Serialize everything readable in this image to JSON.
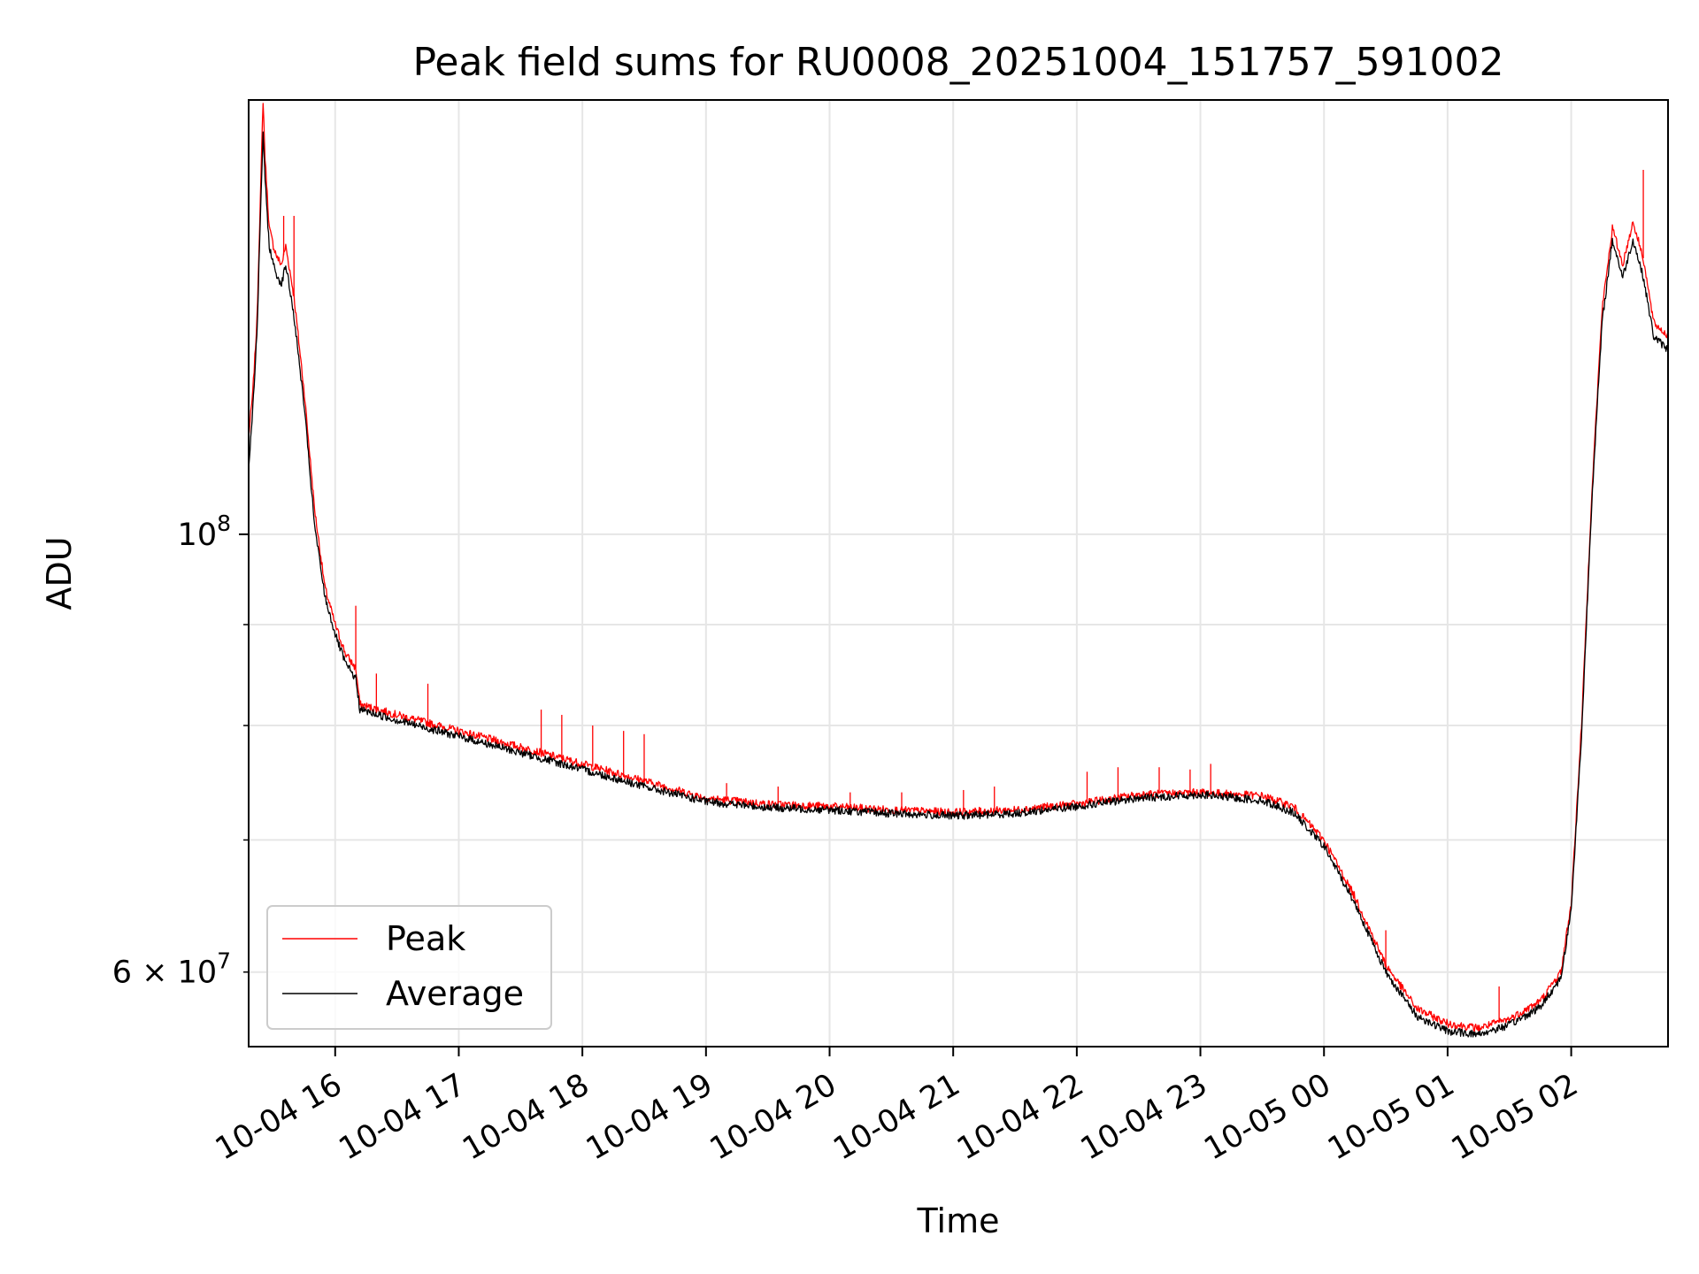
{
  "chart_data": {
    "type": "line",
    "title": "Peak field sums for RU0008_20251004_151757_591002",
    "xlabel": "Time",
    "ylabel": "ADU",
    "y_scale": "log",
    "ylim": [
      55000000,
      166000000
    ],
    "xlim": [
      "2025-10-04 15:18",
      "2025-10-05 02:47"
    ],
    "grid": true,
    "legend_position": "lower-left",
    "x_ticks": [
      {
        "value": "2025-10-04 16:00",
        "label": "10-04 16"
      },
      {
        "value": "2025-10-04 17:00",
        "label": "10-04 17"
      },
      {
        "value": "2025-10-04 18:00",
        "label": "10-04 18"
      },
      {
        "value": "2025-10-04 19:00",
        "label": "10-04 19"
      },
      {
        "value": "2025-10-04 20:00",
        "label": "10-04 20"
      },
      {
        "value": "2025-10-04 21:00",
        "label": "10-04 21"
      },
      {
        "value": "2025-10-04 22:00",
        "label": "10-04 22"
      },
      {
        "value": "2025-10-04 23:00",
        "label": "10-04 23"
      },
      {
        "value": "2025-10-05 00:00",
        "label": "10-05 00"
      },
      {
        "value": "2025-10-05 01:00",
        "label": "10-05 01"
      },
      {
        "value": "2025-10-05 02:00",
        "label": "10-05 02"
      }
    ],
    "y_major_ticks": [
      {
        "value": 100000000,
        "base": "10",
        "exp": "8"
      }
    ],
    "y_minor_ticks": [
      {
        "value": 60000000,
        "mantissa": "6",
        "base": "10",
        "exp": "7"
      },
      {
        "value": 70000000
      },
      {
        "value": 80000000
      },
      {
        "value": 90000000
      }
    ],
    "series": [
      {
        "name": "Peak",
        "color": "#ff0000",
        "x": [
          "2025-10-04 15:18",
          "2025-10-04 15:20",
          "2025-10-04 15:22",
          "2025-10-04 15:24",
          "2025-10-04 15:25",
          "2025-10-04 15:26",
          "2025-10-04 15:28",
          "2025-10-04 15:30",
          "2025-10-04 15:32",
          "2025-10-04 15:34",
          "2025-10-04 15:36",
          "2025-10-04 15:38",
          "2025-10-04 15:40",
          "2025-10-04 15:45",
          "2025-10-04 15:50",
          "2025-10-04 15:55",
          "2025-10-04 16:00",
          "2025-10-04 16:05",
          "2025-10-04 16:10",
          "2025-10-04 16:12",
          "2025-10-04 16:30",
          "2025-10-04 17:00",
          "2025-10-04 17:30",
          "2025-10-04 18:00",
          "2025-10-04 18:30",
          "2025-10-04 19:00",
          "2025-10-04 19:30",
          "2025-10-04 20:00",
          "2025-10-04 20:30",
          "2025-10-04 21:00",
          "2025-10-04 21:30",
          "2025-10-04 22:00",
          "2025-10-04 22:30",
          "2025-10-04 23:00",
          "2025-10-04 23:30",
          "2025-10-04 23:45",
          "2025-10-05 00:00",
          "2025-10-05 00:15",
          "2025-10-05 00:30",
          "2025-10-05 00:45",
          "2025-10-05 01:00",
          "2025-10-05 01:15",
          "2025-10-05 01:30",
          "2025-10-05 01:45",
          "2025-10-05 01:55",
          "2025-10-05 02:00",
          "2025-10-05 02:05",
          "2025-10-05 02:10",
          "2025-10-05 02:15",
          "2025-10-05 02:20",
          "2025-10-05 02:25",
          "2025-10-05 02:30",
          "2025-10-05 02:35",
          "2025-10-05 02:40",
          "2025-10-05 02:47"
        ],
        "y": [
          112000000,
          118000000,
          128000000,
          152000000,
          166000000,
          155000000,
          143000000,
          140000000,
          138000000,
          137000000,
          140000000,
          136000000,
          132000000,
          118000000,
          103000000,
          94000000,
          90000000,
          87000000,
          85500000,
          82000000,
          81000000,
          79500000,
          78000000,
          76500000,
          75000000,
          73500000,
          73000000,
          72800000,
          72500000,
          72300000,
          72500000,
          73000000,
          73800000,
          74000000,
          73700000,
          72800000,
          70000000,
          65500000,
          60500000,
          57500000,
          56500000,
          56200000,
          56800000,
          58000000,
          60000000,
          65000000,
          80000000,
          105000000,
          130000000,
          143000000,
          137000000,
          144000000,
          138000000,
          128000000,
          126000000
        ],
        "spikes": [
          {
            "x": "2025-10-04 15:35",
            "y": 145000000
          },
          {
            "x": "2025-10-04 15:40",
            "y": 145000000
          },
          {
            "x": "2025-10-04 16:10",
            "y": 92000000
          },
          {
            "x": "2025-10-04 16:20",
            "y": 85000000
          },
          {
            "x": "2025-10-04 16:45",
            "y": 84000000
          },
          {
            "x": "2025-10-04 17:40",
            "y": 81500000
          },
          {
            "x": "2025-10-04 17:50",
            "y": 81000000
          },
          {
            "x": "2025-10-04 18:05",
            "y": 80000000
          },
          {
            "x": "2025-10-04 18:20",
            "y": 79500000
          },
          {
            "x": "2025-10-04 18:30",
            "y": 79200000
          },
          {
            "x": "2025-10-04 19:10",
            "y": 74800000
          },
          {
            "x": "2025-10-04 19:35",
            "y": 74500000
          },
          {
            "x": "2025-10-04 20:10",
            "y": 74000000
          },
          {
            "x": "2025-10-04 20:35",
            "y": 74000000
          },
          {
            "x": "2025-10-04 21:05",
            "y": 74200000
          },
          {
            "x": "2025-10-04 21:20",
            "y": 74500000
          },
          {
            "x": "2025-10-04 22:05",
            "y": 75800000
          },
          {
            "x": "2025-10-04 22:20",
            "y": 76200000
          },
          {
            "x": "2025-10-04 22:40",
            "y": 76200000
          },
          {
            "x": "2025-10-04 22:55",
            "y": 76000000
          },
          {
            "x": "2025-10-04 23:05",
            "y": 76500000
          },
          {
            "x": "2025-10-05 00:30",
            "y": 63000000
          },
          {
            "x": "2025-10-05 01:25",
            "y": 59000000
          },
          {
            "x": "2025-10-05 02:35",
            "y": 153000000
          }
        ]
      },
      {
        "name": "Average",
        "color": "#000000",
        "x": [
          "2025-10-04 15:18",
          "2025-10-04 15:20",
          "2025-10-04 15:22",
          "2025-10-04 15:24",
          "2025-10-04 15:25",
          "2025-10-04 15:26",
          "2025-10-04 15:28",
          "2025-10-04 15:30",
          "2025-10-04 15:32",
          "2025-10-04 15:34",
          "2025-10-04 15:36",
          "2025-10-04 15:38",
          "2025-10-04 15:40",
          "2025-10-04 15:45",
          "2025-10-04 15:50",
          "2025-10-04 15:55",
          "2025-10-04 16:00",
          "2025-10-04 16:05",
          "2025-10-04 16:10",
          "2025-10-04 16:12",
          "2025-10-04 16:30",
          "2025-10-04 17:00",
          "2025-10-04 17:30",
          "2025-10-04 18:00",
          "2025-10-04 18:30",
          "2025-10-04 19:00",
          "2025-10-04 19:30",
          "2025-10-04 20:00",
          "2025-10-04 20:30",
          "2025-10-04 21:00",
          "2025-10-04 21:30",
          "2025-10-04 22:00",
          "2025-10-04 22:30",
          "2025-10-04 23:00",
          "2025-10-04 23:30",
          "2025-10-04 23:45",
          "2025-10-05 00:00",
          "2025-10-05 00:15",
          "2025-10-05 00:30",
          "2025-10-05 00:45",
          "2025-10-05 01:00",
          "2025-10-05 01:15",
          "2025-10-05 01:30",
          "2025-10-05 01:45",
          "2025-10-05 01:55",
          "2025-10-05 02:00",
          "2025-10-05 02:05",
          "2025-10-05 02:10",
          "2025-10-05 02:15",
          "2025-10-05 02:20",
          "2025-10-05 02:25",
          "2025-10-05 02:30",
          "2025-10-05 02:35",
          "2025-10-05 02:40",
          "2025-10-05 02:47"
        ],
        "y": [
          108000000,
          116000000,
          126000000,
          148000000,
          160000000,
          151000000,
          140000000,
          137000000,
          135000000,
          134000000,
          137000000,
          133000000,
          129000000,
          116000000,
          101000000,
          93000000,
          89000000,
          86000000,
          84500000,
          81500000,
          80500000,
          79000000,
          77500000,
          76000000,
          74500000,
          73200000,
          72700000,
          72500000,
          72200000,
          72000000,
          72200000,
          72800000,
          73500000,
          73800000,
          73300000,
          72300000,
          69500000,
          65000000,
          60000000,
          57000000,
          56000000,
          55800000,
          56400000,
          57600000,
          59600000,
          64500000,
          79000000,
          104000000,
          128000000,
          141000000,
          135000000,
          141000000,
          135000000,
          126000000,
          124000000
        ]
      }
    ]
  }
}
